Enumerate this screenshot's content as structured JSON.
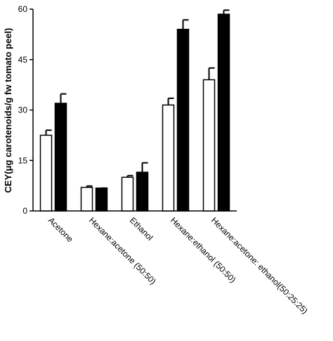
{
  "chart_data": {
    "type": "bar",
    "y_label": "CEY(μg carotenoids/g fw tomato peel)",
    "categories": [
      "Acetone",
      "Hexane:acetone (50:50)",
      "Ethanol",
      "Hexane:ethanol (50:50)",
      "Hexane:acetone: ethanol(50:25:25)"
    ],
    "series": [
      {
        "color": "#ffffff",
        "values": [
          22.5,
          7,
          10,
          31.5,
          39
        ],
        "errors": [
          1.5,
          0.4,
          0.5,
          2,
          3.5
        ]
      },
      {
        "color": "#000000",
        "values": [
          32,
          6.8,
          11.5,
          54,
          58.5
        ],
        "errors": [
          2.8,
          0,
          2.8,
          2.8,
          1.2
        ]
      }
    ],
    "ylim": [
      0,
      60
    ],
    "yticks": [
      0,
      15,
      30,
      45,
      60
    ]
  }
}
